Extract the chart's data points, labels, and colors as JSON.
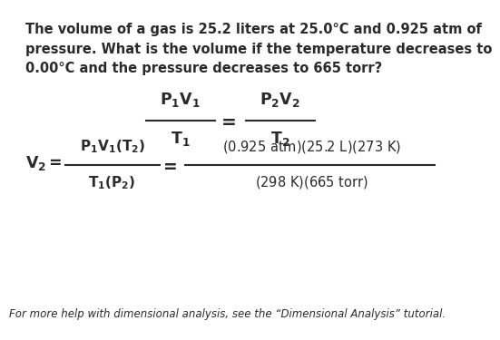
{
  "background_color": "#ffffff",
  "text_color": "#2a2a2a",
  "problem_line1": "The volume of a gas is 25.2 liters at 25.0°C and 0.925 atm of",
  "problem_line2": "pressure. What is the volume if the temperature decreases to",
  "problem_line3": "0.00°C and the pressure decreases to 665 torr?",
  "footer_text": "For more help with dimensional analysis, see the “Dimensional Analysis” tutorial.",
  "prob_fs": 10.5,
  "form_fs": 12.5,
  "foot_fs": 8.5,
  "small_form_fs": 11.0
}
